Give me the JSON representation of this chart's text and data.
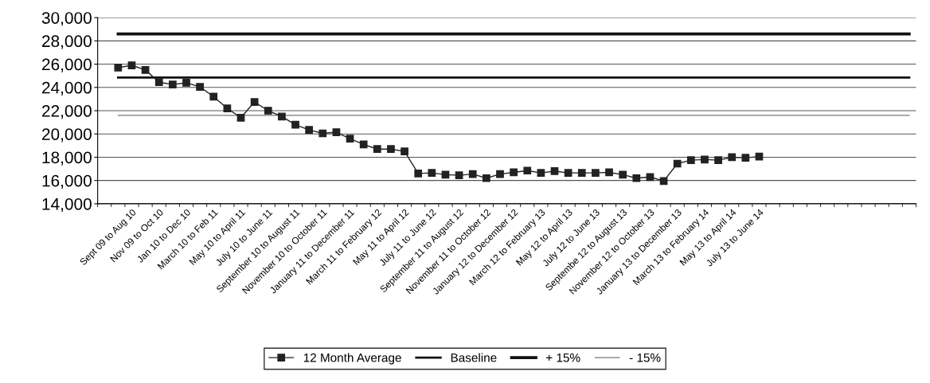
{
  "chart_data": {
    "type": "line",
    "categories": [
      null,
      null,
      "Sept 09 to Aug 10",
      null,
      "Nov 09 to Oct 10",
      null,
      "Jan 10 to Dec 10",
      null,
      "March 10 to Feb 11",
      null,
      "May 10 to April 11",
      null,
      "July 10 to June 11",
      null,
      "September 10 to August 11",
      null,
      "November 10 to October 11",
      null,
      "January 11 to December 11",
      null,
      "March 11 to February 12",
      null,
      "May 11 to April 12",
      null,
      "July 11 to June 12",
      null,
      "September 11 to August 12",
      null,
      "November 11 to October 12",
      null,
      "January 12 to December 12",
      null,
      "March 12 to February 13",
      null,
      "May 12 to April 13",
      null,
      "July 12 to June 13",
      null,
      "Septembe 12 to August 13",
      null,
      "November 12 to October 13",
      null,
      "January 13 to December 13",
      null,
      "March 13 to February 14",
      null,
      "May 13 to April 14",
      null,
      "July 13 to June 14",
      null,
      null,
      null,
      null,
      null,
      null,
      null,
      null,
      null,
      null,
      null
    ],
    "series": [
      {
        "name": "12 Month Average",
        "color": "#222222",
        "marker": "square",
        "values": [
          null,
          25700,
          25900,
          25500,
          24450,
          24250,
          24400,
          24050,
          23200,
          22200,
          21400,
          22750,
          22000,
          21500,
          20800,
          20350,
          20050,
          20150,
          19600,
          19100,
          18700,
          18700,
          18500,
          16600,
          16650,
          16500,
          16450,
          16550,
          16200,
          16550,
          16700,
          16850,
          16650,
          16800,
          16650,
          16650,
          16650,
          16700,
          16500,
          16200,
          16300,
          15950,
          17450,
          17750,
          17800,
          17750,
          18000,
          17950,
          18050,
          null,
          null,
          null,
          null,
          null,
          null,
          null,
          null,
          null,
          null,
          null
        ]
      },
      {
        "name": "Baseline",
        "color": "#111111",
        "marker": "none",
        "values": [
          null,
          24850,
          24850,
          24850,
          24850,
          24850,
          24850,
          24850,
          24850,
          24850,
          24850,
          24850,
          24850,
          24850,
          24850,
          24850,
          24850,
          24850,
          24850,
          24850,
          24850,
          24850,
          24850,
          24850,
          24850,
          24850,
          24850,
          24850,
          24850,
          24850,
          24850,
          24850,
          24850,
          24850,
          24850,
          24850,
          24850,
          24850,
          24850,
          24850,
          24850,
          24850,
          24850,
          24850,
          24850,
          24850,
          24850,
          24850,
          24850,
          24850,
          24850,
          24850,
          24850,
          24850,
          24850,
          24850,
          24850,
          24850,
          24850,
          24850
        ]
      },
      {
        "name": "+ 15%",
        "color": "#111111",
        "marker": "none",
        "values": [
          null,
          28600,
          28600,
          28600,
          28600,
          28600,
          28600,
          28600,
          28600,
          28600,
          28600,
          28600,
          28600,
          28600,
          28600,
          28600,
          28600,
          28600,
          28600,
          28600,
          28600,
          28600,
          28600,
          28600,
          28600,
          28600,
          28600,
          28600,
          28600,
          28600,
          28600,
          28600,
          28600,
          28600,
          28600,
          28600,
          28600,
          28600,
          28600,
          28600,
          28600,
          28600,
          28600,
          28600,
          28600,
          28600,
          28600,
          28600,
          28600,
          28600,
          28600,
          28600,
          28600,
          28600,
          28600,
          28600,
          28600,
          28600,
          28600,
          28600
        ]
      },
      {
        "name": "- 15%",
        "color": "#777777",
        "marker": "none",
        "values": [
          null,
          21600,
          21600,
          21600,
          21600,
          21600,
          21600,
          21600,
          21600,
          21600,
          21600,
          21600,
          21600,
          21600,
          21600,
          21600,
          21600,
          21600,
          21600,
          21600,
          21600,
          21600,
          21600,
          21600,
          21600,
          21600,
          21600,
          21600,
          21600,
          21600,
          21600,
          21600,
          21600,
          21600,
          21600,
          21600,
          21600,
          21600,
          21600,
          21600,
          21600,
          21600,
          21600,
          21600,
          21600,
          21600,
          21600,
          21600,
          21600,
          21600,
          21600,
          21600,
          21600,
          21600,
          21600,
          21600,
          21600,
          21600,
          21600,
          21600
        ]
      }
    ],
    "ylim": [
      14000,
      30000
    ],
    "yticks": [
      {
        "value": 14000,
        "label": "14,000"
      },
      {
        "value": 16000,
        "label": "16,000"
      },
      {
        "value": 18000,
        "label": "18,000"
      },
      {
        "value": 20000,
        "label": "20,000"
      },
      {
        "value": 22000,
        "label": "22,000"
      },
      {
        "value": 24000,
        "label": "24,000"
      },
      {
        "value": 26000,
        "label": "26,000"
      },
      {
        "value": 28000,
        "label": "28,000"
      },
      {
        "value": 30000,
        "label": "30,000"
      }
    ],
    "grid": "y",
    "legend": "bottom",
    "line_style": "solid"
  }
}
